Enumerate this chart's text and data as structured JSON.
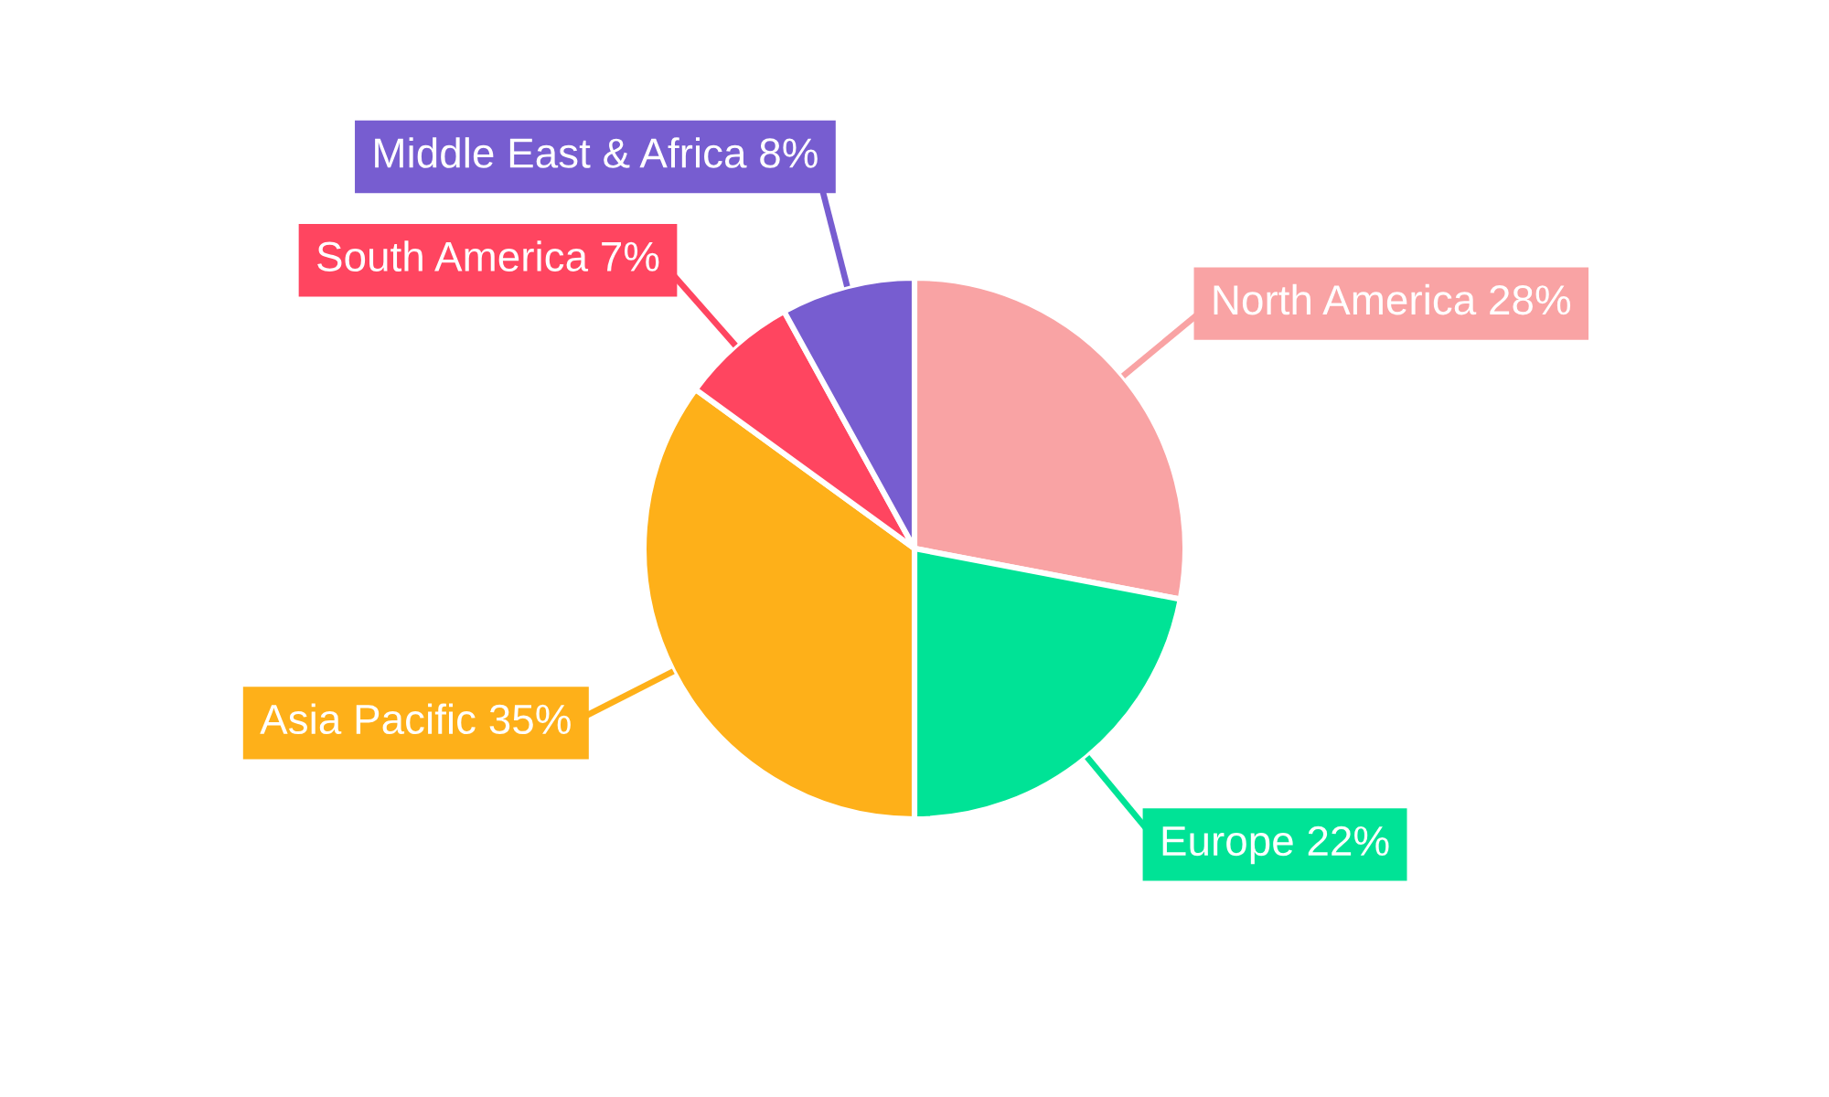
{
  "chart_data": {
    "type": "pie",
    "categories": [
      "North America",
      "Europe",
      "Asia Pacific",
      "South America",
      "Middle East & Africa"
    ],
    "values": [
      28,
      22,
      35,
      7,
      8
    ],
    "colors": [
      "#f9a3a4",
      "#00e396",
      "#feb019",
      "#ff4560",
      "#775dd0"
    ],
    "value_labels": [
      "28%",
      "22%",
      "35%",
      "7%",
      "8%"
    ]
  }
}
